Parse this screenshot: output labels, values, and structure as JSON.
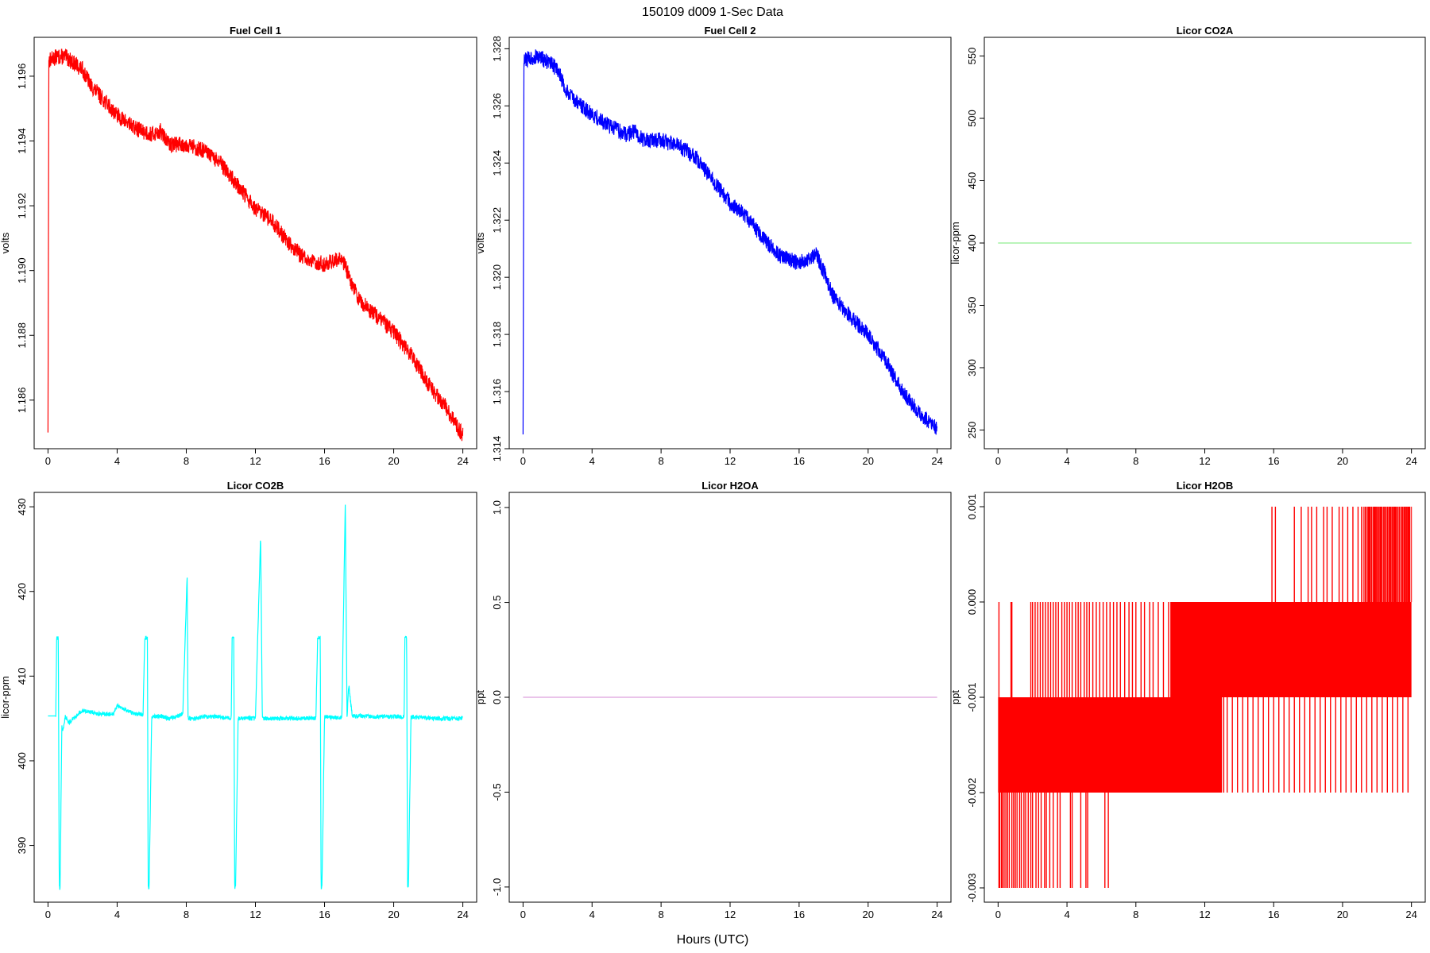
{
  "figure": {
    "title": "150109   d009   1-Sec Data",
    "xlabel": "Hours (UTC)"
  },
  "chart_data": [
    {
      "type": "line",
      "title": "Fuel Cell 1",
      "ylabel": "volts",
      "color": "#ff0000",
      "xlim": [
        -0.8,
        24.8
      ],
      "ylim": [
        1.1845,
        1.1972
      ],
      "xticks": [
        0,
        4,
        8,
        12,
        16,
        20,
        24
      ],
      "xtick_labels": [
        "0",
        "4",
        "8",
        "12",
        "16",
        "20",
        "24"
      ],
      "yticks": [
        1.186,
        1.188,
        1.19,
        1.192,
        1.194,
        1.196
      ],
      "ytick_labels": [
        "1.186",
        "1.188",
        "1.190",
        "1.192",
        "1.194",
        "1.196"
      ],
      "x": [
        0,
        0.05,
        0.1,
        0.5,
        1,
        1.5,
        2,
        2.5,
        3,
        4,
        5,
        6,
        6.5,
        7,
        8,
        9,
        10,
        11,
        12,
        13,
        14,
        15,
        16,
        17,
        17.5,
        18,
        19,
        20,
        21,
        22,
        23,
        24
      ],
      "y": [
        1.185,
        1.1965,
        1.1965,
        1.1966,
        1.1966,
        1.1964,
        1.1962,
        1.1957,
        1.1954,
        1.1948,
        1.1944,
        1.1942,
        1.1943,
        1.1939,
        1.1939,
        1.1937,
        1.1933,
        1.1926,
        1.1919,
        1.1915,
        1.1908,
        1.1903,
        1.1902,
        1.1904,
        1.1897,
        1.1891,
        1.1886,
        1.1881,
        1.1874,
        1.1865,
        1.1858,
        1.1849
      ],
      "noise": 0.00025
    },
    {
      "type": "line",
      "title": "Fuel Cell 2",
      "ylabel": "volts",
      "color": "#0000ff",
      "xlim": [
        -0.8,
        24.8
      ],
      "ylim": [
        1.314,
        1.3284
      ],
      "xticks": [
        0,
        4,
        8,
        12,
        16,
        20,
        24
      ],
      "xtick_labels": [
        "0",
        "4",
        "8",
        "12",
        "16",
        "20",
        "24"
      ],
      "yticks": [
        1.314,
        1.316,
        1.318,
        1.32,
        1.322,
        1.324,
        1.326,
        1.328
      ],
      "ytick_labels": [
        "1.314",
        "1.316",
        "1.318",
        "1.320",
        "1.322",
        "1.324",
        "1.326",
        "1.328"
      ],
      "x": [
        0,
        0.05,
        0.1,
        0.5,
        1,
        1.5,
        2,
        2.5,
        3,
        4,
        5,
        6,
        6.5,
        7,
        8,
        9,
        10,
        11,
        12,
        13,
        14,
        15,
        16,
        17,
        17.5,
        18,
        19,
        20,
        21,
        22,
        23,
        24
      ],
      "y": [
        1.3145,
        1.3275,
        1.3276,
        1.3277,
        1.3277,
        1.3275,
        1.3273,
        1.3265,
        1.3262,
        1.3257,
        1.3253,
        1.325,
        1.3251,
        1.3248,
        1.3248,
        1.3246,
        1.3242,
        1.3234,
        1.3226,
        1.3221,
        1.3213,
        1.3207,
        1.3205,
        1.3208,
        1.3201,
        1.3193,
        1.3186,
        1.318,
        1.3171,
        1.316,
        1.3152,
        1.3147
      ],
      "noise": 0.00028
    },
    {
      "type": "line",
      "title": "Licor CO2A",
      "ylabel": "licor-ppm",
      "color": "#90ee90",
      "xlim": [
        -0.8,
        24.8
      ],
      "ylim": [
        235,
        565
      ],
      "xticks": [
        0,
        4,
        8,
        12,
        16,
        20,
        24
      ],
      "xtick_labels": [
        "0",
        "4",
        "8",
        "12",
        "16",
        "20",
        "24"
      ],
      "yticks": [
        250,
        300,
        350,
        400,
        450,
        500,
        550
      ],
      "ytick_labels": [
        "250",
        "300",
        "350",
        "400",
        "450",
        "500",
        "550"
      ],
      "x": [
        0,
        24
      ],
      "y": [
        400,
        400
      ]
    },
    {
      "type": "line",
      "title": "Licor CO2B",
      "ylabel": "licor-ppm",
      "color": "#00ffff",
      "xlim": [
        -0.8,
        24.8
      ],
      "ylim": [
        383.3,
        431.7
      ],
      "xticks": [
        0,
        4,
        8,
        12,
        16,
        20,
        24
      ],
      "xtick_labels": [
        "0",
        "4",
        "8",
        "12",
        "16",
        "20",
        "24"
      ],
      "yticks": [
        390,
        400,
        410,
        420,
        430
      ],
      "ytick_labels": [
        "390",
        "400",
        "410",
        "420",
        "430"
      ],
      "x": [
        0,
        0.45,
        0.5,
        0.6,
        0.65,
        0.7,
        0.8,
        0.85,
        1.0,
        1.1,
        1.2,
        1.5,
        2,
        3,
        3.8,
        4,
        5,
        5.5,
        5.6,
        5.75,
        5.8,
        5.85,
        6,
        6.5,
        7,
        7.8,
        8.05,
        8.1,
        8.2,
        8.5,
        9,
        10,
        10.6,
        10.65,
        10.75,
        10.8,
        10.85,
        11,
        12,
        12.3,
        12.4,
        12.5,
        13,
        14,
        15,
        15.5,
        15.6,
        15.75,
        15.8,
        15.85,
        16,
        16.5,
        17,
        17.2,
        17.3,
        17.4,
        17.6,
        18,
        19,
        20,
        20.6,
        20.65,
        20.75,
        20.8,
        20.85,
        21,
        22,
        23,
        24
      ],
      "y": [
        405.3,
        405.3,
        414.5,
        414.5,
        385,
        385,
        404,
        403.5,
        405.2,
        405,
        404.5,
        405,
        406,
        405.5,
        405.5,
        406.5,
        405.5,
        405.5,
        414.5,
        414.5,
        385,
        385,
        405.2,
        405.3,
        405,
        405.5,
        422,
        405,
        405,
        405,
        405.2,
        405.2,
        405,
        414.5,
        414.5,
        385,
        385,
        405,
        405,
        426.5,
        405,
        405,
        405,
        405,
        405,
        405,
        414.5,
        414.5,
        385,
        385,
        405.2,
        405.1,
        405.1,
        430.5,
        405,
        409,
        405.3,
        405.3,
        405.2,
        405.2,
        405.2,
        414.5,
        414.5,
        385,
        385,
        405.2,
        405,
        405,
        405
      ],
      "noise": 0.25
    },
    {
      "type": "line",
      "title": "Licor H2OA",
      "ylabel": "ppt",
      "color": "#dda0dd",
      "xlim": [
        -0.8,
        24.8
      ],
      "ylim": [
        -1.08,
        1.08
      ],
      "xticks": [
        0,
        4,
        8,
        12,
        16,
        20,
        24
      ],
      "xtick_labels": [
        "0",
        "4",
        "8",
        "12",
        "16",
        "20",
        "24"
      ],
      "yticks": [
        -1.0,
        -0.5,
        0.0,
        0.5,
        1.0
      ],
      "ytick_labels": [
        "-1.0",
        "-0.5",
        "0.0",
        "0.5",
        "1.0"
      ],
      "x": [
        0,
        24
      ],
      "y": [
        0,
        0
      ]
    },
    {
      "type": "line",
      "title": "Licor H2OB",
      "ylabel": "ppt",
      "color": "#ff0000",
      "xlim": [
        -0.8,
        24.8
      ],
      "ylim": [
        -0.00315,
        0.00115
      ],
      "xticks": [
        0,
        4,
        8,
        12,
        16,
        20,
        24
      ],
      "xtick_labels": [
        "0",
        "4",
        "8",
        "12",
        "16",
        "20",
        "24"
      ],
      "yticks": [
        -0.003,
        -0.002,
        -0.001,
        0.0,
        0.001
      ],
      "ytick_labels": [
        "-0.003",
        "-0.002",
        "-0.001",
        "0.000",
        "0.001"
      ],
      "levels": [
        -0.003,
        -0.002,
        -0.001,
        0.0,
        0.001
      ],
      "main_band": {
        "x": [
          0,
          13
        ],
        "y": [
          -0.002,
          -0.001
        ]
      },
      "upper_band": {
        "x": [
          10,
          24
        ],
        "y": [
          -0.001,
          0.0
        ]
      },
      "down_spikes": [
        0.05,
        0.1,
        0.2,
        0.25,
        0.35,
        0.45,
        0.55,
        0.65,
        0.8,
        0.9,
        1.0,
        1.1,
        1.25,
        1.35,
        1.5,
        1.6,
        1.75,
        1.9,
        2.0,
        2.2,
        2.35,
        2.5,
        2.7,
        2.8,
        3.0,
        3.2,
        3.45,
        3.6,
        4.2,
        4.3,
        4.8,
        5.1,
        5.2,
        6.2,
        6.4
      ],
      "up_spikes_to_zero": [
        0.05,
        0.75,
        0.8,
        1.9,
        2.0,
        2.15,
        2.3,
        2.45,
        2.6,
        2.75,
        2.9,
        3.05,
        3.2,
        3.35,
        3.5,
        3.7,
        3.85,
        4.0,
        4.15,
        4.3,
        4.5,
        4.65,
        4.8,
        5.0,
        5.15,
        5.3,
        5.5,
        5.7,
        5.9,
        6.1,
        6.3,
        6.5,
        6.7,
        6.9,
        7.1,
        7.35,
        7.6,
        7.8,
        8.0,
        8.3,
        8.5,
        8.8,
        9.0,
        9.3,
        9.6,
        9.9
      ],
      "down_spikes_to_band": [
        13.1,
        13.3,
        13.6,
        13.9,
        14.2,
        14.5,
        14.8,
        15.1,
        15.4,
        15.7,
        16.0,
        16.3,
        16.6,
        16.9,
        17.2,
        17.5,
        17.8,
        18.1,
        18.4,
        18.7,
        19.0,
        19.3,
        19.6,
        19.9,
        20.2,
        20.5,
        20.8,
        21.1,
        21.4,
        21.7,
        22.0,
        22.3,
        22.6,
        22.9,
        23.2,
        23.5,
        23.8
      ],
      "up_spikes_to_top": [
        15.9,
        16.1,
        17.2,
        17.6,
        18.0,
        18.2,
        18.5,
        18.9,
        19.1,
        19.4,
        19.8,
        20.0,
        20.3,
        20.6,
        20.9,
        21.1,
        21.3,
        21.5,
        21.7,
        21.8,
        21.9,
        22.0,
        22.1,
        22.2,
        22.3,
        22.4,
        22.5,
        22.6,
        22.7,
        22.8,
        22.9,
        23.0,
        23.1,
        23.2,
        23.3,
        23.4,
        23.5,
        23.6,
        23.7,
        23.8,
        23.9
      ]
    }
  ]
}
